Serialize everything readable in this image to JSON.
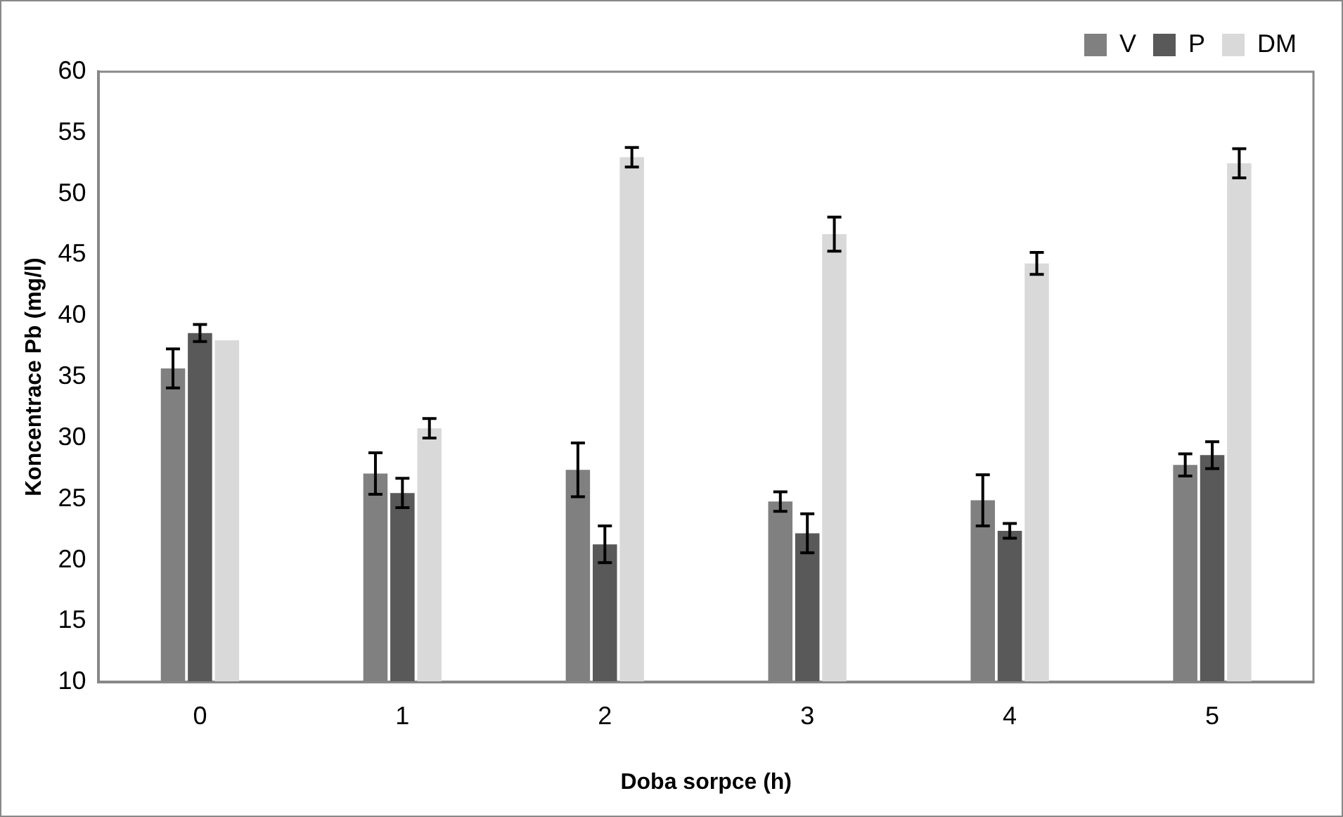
{
  "chart_data": {
    "type": "bar",
    "xlabel": "Doba sorpce (h)",
    "ylabel": "Koncentrace Pb (mg/l)",
    "categories": [
      "0",
      "1",
      "2",
      "3",
      "4",
      "5"
    ],
    "series": [
      {
        "name": "V",
        "color": "#808080",
        "values": [
          35.7,
          27.1,
          27.4,
          24.8,
          24.9,
          27.8
        ],
        "errors": [
          1.6,
          1.7,
          2.2,
          0.8,
          2.1,
          0.9
        ]
      },
      {
        "name": "P",
        "color": "#595959",
        "values": [
          38.6,
          25.5,
          21.3,
          22.2,
          22.4,
          28.6
        ],
        "errors": [
          0.7,
          1.2,
          1.5,
          1.6,
          0.6,
          1.1
        ]
      },
      {
        "name": "DM",
        "color": "#d9d9d9",
        "values": [
          38.0,
          30.8,
          53.0,
          46.7,
          44.3,
          52.5
        ],
        "errors": [
          null,
          0.8,
          0.8,
          1.4,
          0.9,
          1.2
        ]
      }
    ],
    "ylim": [
      10,
      60
    ],
    "yticks": [
      10,
      15,
      20,
      25,
      30,
      35,
      40,
      45,
      50,
      55,
      60
    ],
    "grid": false,
    "legend": "top right"
  }
}
